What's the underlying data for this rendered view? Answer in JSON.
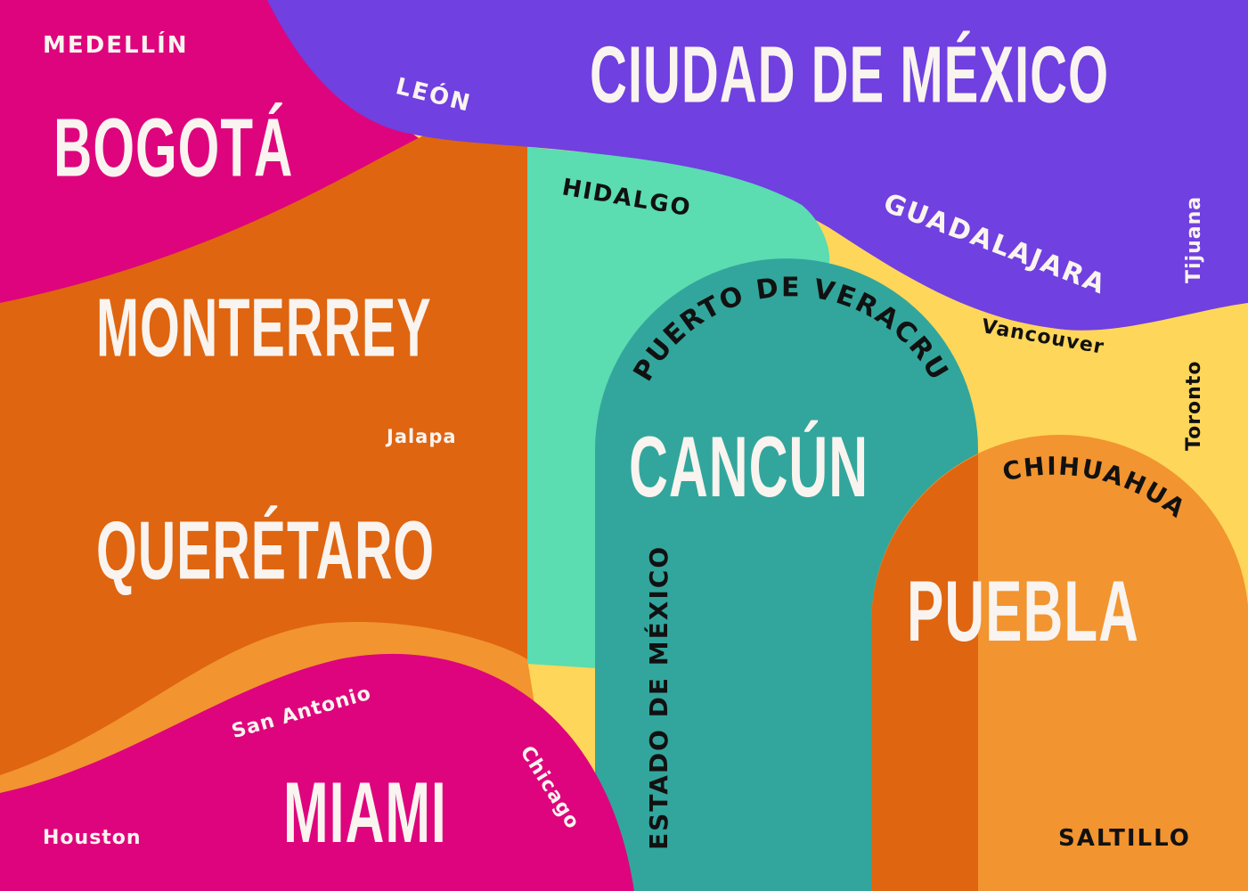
{
  "colors": {
    "background": "#fed65a",
    "magenta": "#de047d",
    "purple": "#7040e0",
    "orange_dark": "#df6510",
    "orange_light": "#f2942f",
    "mint": "#5bdcb1",
    "teal": "#32a69c",
    "cream": "#f9f4ef",
    "black": "#111111"
  },
  "cities": {
    "medellin": "MEDELLÍN",
    "leon": "LEÓN",
    "ciudad_de_mexico": "CIUDAD DE MÉXICO",
    "bogota": "BOGOTÁ",
    "hidalgo": "HIDALGO",
    "guadalajara": "GUADALAJARA",
    "tijuana": "Tijuana",
    "monterrey": "MONTERREY",
    "puerto_de_veracruz": "PUERTO DE VERACRUZ",
    "vancouver": "Vancouver",
    "toronto": "Toronto",
    "jalapa": "Jalapa",
    "cancun": "CANCÚN",
    "chihuahua": "CHIHUAHUA",
    "queretaro": "QUERÉTARO",
    "estado_de_mexico": "ESTADO DE MÉXICO",
    "puebla": "PUEBLA",
    "san_antonio": "San Antonio",
    "chicago": "Chicago",
    "miami": "MIAMI",
    "houston": "Houston",
    "saltillo": "SALTILLO"
  }
}
